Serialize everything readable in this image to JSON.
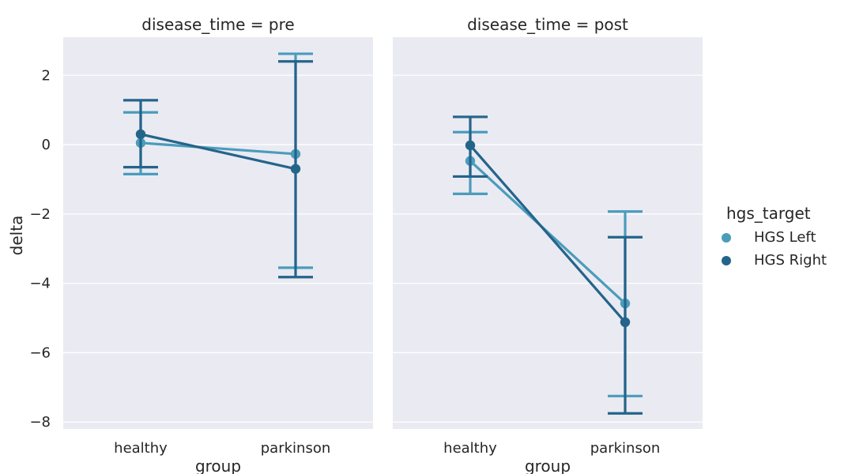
{
  "chart_data": {
    "type": "point",
    "facet_variable": "disease_time",
    "categories": [
      "healthy",
      "parkinson"
    ],
    "xlabel": "group",
    "ylabel": "delta",
    "ylim": [
      -8.2,
      3.1
    ],
    "yticks": [
      -8,
      -6,
      -4,
      -2,
      0,
      2
    ],
    "ytick_labels": [
      "−8",
      "−6",
      "−4",
      "−2",
      "0",
      "2"
    ],
    "grid": true,
    "legend": {
      "title": "hgs_target",
      "placement": "right"
    },
    "panels": [
      {
        "title": "disease_time = pre",
        "series": [
          {
            "name": "HGS Left",
            "color": "#4a9cbc",
            "values": [
              0.05,
              -0.27
            ],
            "ci_low": [
              -0.85,
              -3.55
            ],
            "ci_high": [
              0.93,
              2.62
            ]
          },
          {
            "name": "HGS Right",
            "color": "#24648a",
            "values": [
              0.3,
              -0.7
            ],
            "ci_low": [
              -0.65,
              -3.82
            ],
            "ci_high": [
              1.28,
              2.4
            ]
          }
        ]
      },
      {
        "title": "disease_time = post",
        "series": [
          {
            "name": "HGS Left",
            "color": "#4a9cbc",
            "values": [
              -0.47,
              -4.58
            ],
            "ci_low": [
              -1.42,
              -7.25
            ],
            "ci_high": [
              0.36,
              -1.93
            ]
          },
          {
            "name": "HGS Right",
            "color": "#24648a",
            "values": [
              -0.02,
              -5.12
            ],
            "ci_low": [
              -0.92,
              -7.75
            ],
            "ci_high": [
              0.8,
              -2.67
            ]
          }
        ]
      }
    ]
  }
}
